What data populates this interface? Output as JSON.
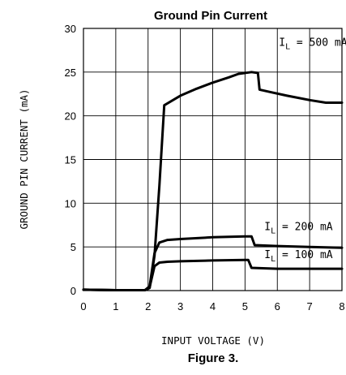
{
  "chart_data": {
    "type": "line",
    "title": "Ground Pin Current",
    "xlabel": "INPUT VOLTAGE (V)",
    "ylabel": "GROUND PIN CURRENT (mA)",
    "xlim": [
      0,
      8
    ],
    "ylim": [
      0,
      30
    ],
    "x_ticks": [
      "0",
      "1",
      "2",
      "3",
      "4",
      "5",
      "6",
      "7",
      "8"
    ],
    "y_ticks": [
      "0",
      "5",
      "10",
      "15",
      "20",
      "25",
      "30"
    ],
    "grid": true,
    "series": [
      {
        "name": "IL = 500 mA",
        "label_main": "I",
        "label_sub": "L",
        "label_rest": " = 500 mA",
        "points": [
          [
            0,
            0.1
          ],
          [
            1,
            0.05
          ],
          [
            1.9,
            0.05
          ],
          [
            2.05,
            0.3
          ],
          [
            2.2,
            4
          ],
          [
            2.35,
            12
          ],
          [
            2.5,
            21.2
          ],
          [
            3,
            22.3
          ],
          [
            3.5,
            23.1
          ],
          [
            4,
            23.8
          ],
          [
            4.5,
            24.4
          ],
          [
            4.8,
            24.8
          ],
          [
            5.2,
            25
          ],
          [
            5.4,
            24.9
          ],
          [
            5.45,
            23
          ],
          [
            5.8,
            22.7
          ],
          [
            6.3,
            22.3
          ],
          [
            7,
            21.8
          ],
          [
            7.5,
            21.5
          ],
          [
            8,
            21.5
          ]
        ]
      },
      {
        "name": "IL = 200 mA",
        "label_main": "I",
        "label_sub": "L",
        "label_rest": " = 200 mA",
        "points": [
          [
            0,
            0.1
          ],
          [
            1,
            0.05
          ],
          [
            1.9,
            0.05
          ],
          [
            2.05,
            0.5
          ],
          [
            2.2,
            4.3
          ],
          [
            2.35,
            5.5
          ],
          [
            2.6,
            5.8
          ],
          [
            3,
            5.9
          ],
          [
            4,
            6.1
          ],
          [
            5,
            6.2
          ],
          [
            5.2,
            6.2
          ],
          [
            5.3,
            5.2
          ],
          [
            6,
            5.1
          ],
          [
            7,
            5
          ],
          [
            8,
            4.9
          ]
        ]
      },
      {
        "name": "IL = 100 mA",
        "label_main": "I",
        "label_sub": "L",
        "label_rest": " = 100 mA",
        "points": [
          [
            0,
            0.1
          ],
          [
            1,
            0.05
          ],
          [
            1.9,
            0.05
          ],
          [
            2.05,
            0.4
          ],
          [
            2.2,
            2.8
          ],
          [
            2.35,
            3.2
          ],
          [
            2.6,
            3.3
          ],
          [
            3,
            3.35
          ],
          [
            4,
            3.45
          ],
          [
            5,
            3.5
          ],
          [
            5.1,
            3.5
          ],
          [
            5.2,
            2.6
          ],
          [
            6,
            2.5
          ],
          [
            7,
            2.5
          ],
          [
            8,
            2.5
          ]
        ]
      }
    ],
    "caption": "Figure 3."
  }
}
